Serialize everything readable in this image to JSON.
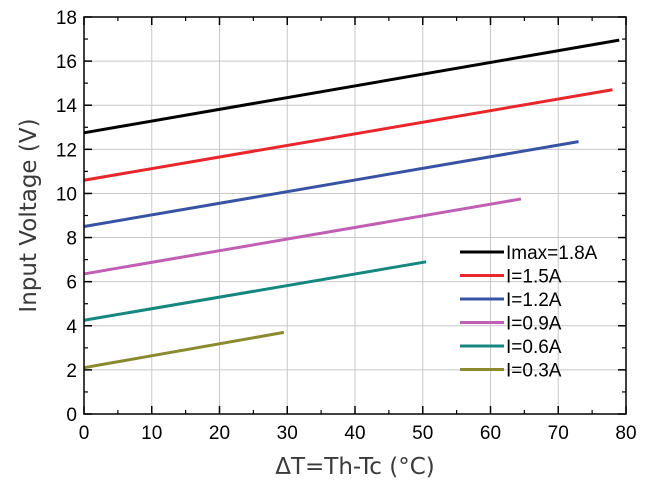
{
  "chart_data": {
    "type": "line",
    "title": "",
    "xlabel": "ΔT=Th-Tc (°C)",
    "ylabel": "Input Voltage (V)",
    "xlim": [
      0,
      80
    ],
    "ylim": [
      0,
      18
    ],
    "xticks": [
      0,
      10,
      20,
      30,
      40,
      50,
      60,
      70,
      80
    ],
    "yticks": [
      0,
      2,
      4,
      6,
      8,
      10,
      12,
      14,
      16,
      18
    ],
    "grid": true,
    "legend_position": "bottom-right",
    "series": [
      {
        "name": "Imax=1.8A",
        "color": "#000000",
        "x": [
          0,
          79
        ],
        "y": [
          12.75,
          16.95
        ]
      },
      {
        "name": "I=1.5A",
        "color": "#e8262b",
        "x": [
          0,
          78
        ],
        "y": [
          10.6,
          14.7
        ]
      },
      {
        "name": "I=1.2A",
        "color": "#3953a4",
        "x": [
          0,
          73
        ],
        "y": [
          8.5,
          12.35
        ]
      },
      {
        "name": "I=0.9A",
        "color": "#c05fb4",
        "x": [
          0,
          64.5
        ],
        "y": [
          6.35,
          9.75
        ]
      },
      {
        "name": "I=0.6A",
        "color": "#15877f",
        "x": [
          0,
          50.5
        ],
        "y": [
          4.25,
          6.9
        ]
      },
      {
        "name": "I=0.3A",
        "color": "#8a8a30",
        "x": [
          0,
          29.5
        ],
        "y": [
          2.1,
          3.7
        ]
      }
    ]
  }
}
